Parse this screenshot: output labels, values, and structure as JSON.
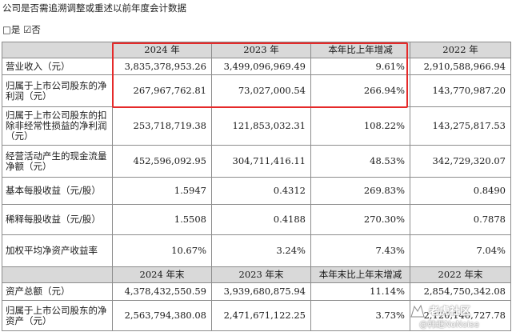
{
  "intro": {
    "question": "公司是否需追溯调整或重述以前年度会计数据",
    "checkbox_glyph": "□",
    "yes_label": "是",
    "checked_glyph": "☑",
    "no_label": "否"
  },
  "table": {
    "header1": [
      "",
      "2024 年",
      "2023 年",
      "本年比上年增减",
      "2022 年"
    ],
    "header2": [
      "",
      "2024 年末",
      "2023 年末",
      "本年末比上年末增减",
      "2022 年末"
    ],
    "rows_a": [
      {
        "label": "营业收入（元）",
        "v2024": "3,835,378,953.26",
        "v2023": "3,499,096,969.49",
        "change": "9.61%",
        "v2022": "2,910,588,966.94"
      },
      {
        "label": "归属于上市公司股东的净利润（元）",
        "v2024": "267,967,762.81",
        "v2023": "73,027,000.54",
        "change": "266.94%",
        "v2022": "143,770,987.20"
      },
      {
        "label": "归属于上市公司股东的扣除非经常性损益的净利润（元）",
        "v2024": "253,718,719.38",
        "v2023": "121,853,032.31",
        "change": "108.22%",
        "v2022": "143,275,817.53"
      },
      {
        "label": "经营活动产生的现金流量净额（元）",
        "v2024": "452,596,092.95",
        "v2023": "304,711,416.11",
        "change": "48.53%",
        "v2022": "342,729,320.07"
      },
      {
        "label": "基本每股收益（元/股）",
        "v2024": "1.5947",
        "v2023": "0.4312",
        "change": "269.83%",
        "v2022": "0.8490"
      },
      {
        "label": "稀释每股收益（元/股）",
        "v2024": "1.5508",
        "v2023": "0.4188",
        "change": "270.30%",
        "v2022": "0.7878"
      },
      {
        "label": "加权平均净资产收益率",
        "v2024": "10.67%",
        "v2023": "3.24%",
        "change": "7.43%",
        "v2022": "7.04%"
      }
    ],
    "rows_b": [
      {
        "label": "资产总额（元）",
        "v2024": "4,378,432,550.59",
        "v2023": "3,939,680,875.94",
        "change": "11.14%",
        "v2022": "2,854,750,342.08"
      },
      {
        "label": "归属于上市公司股东的净资产（元）",
        "v2024": "2,563,794,380.08",
        "v2023": "2,471,671,122.25",
        "change": "3.73%",
        "v2022": "2,120,146,727.78"
      }
    ]
  },
  "watermark": {
    "line1": "老虎社区",
    "line2": "@韩继NoNoise"
  }
}
